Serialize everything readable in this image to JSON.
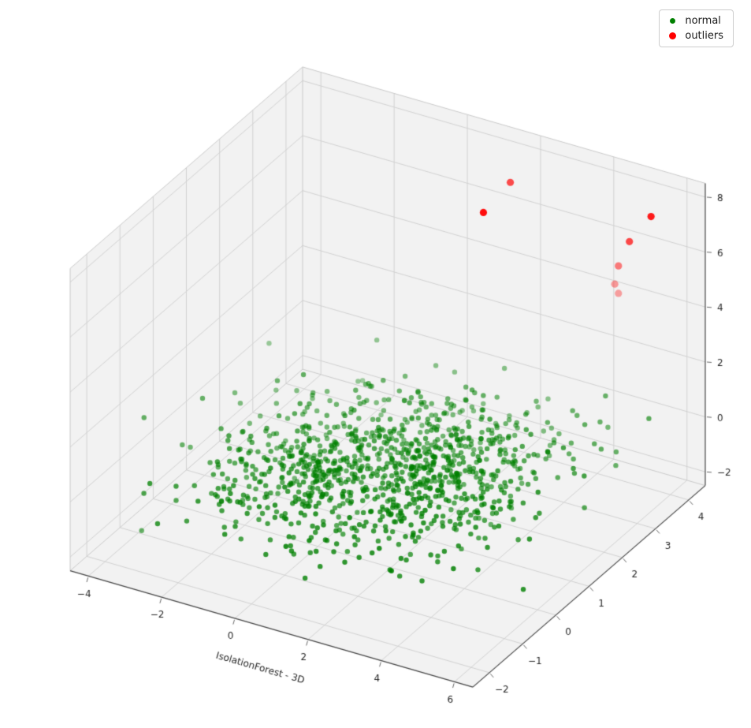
{
  "chart_data": {
    "type": "scatter",
    "projection": "3d",
    "title": "",
    "xlabel": "IsolationForest - 3D",
    "ylabel": "",
    "zlabel": "",
    "xlim": [
      -4.5,
      6.5
    ],
    "ylim": [
      -2.5,
      4.5
    ],
    "zlim": [
      -2.5,
      8.5
    ],
    "x_ticks": [
      -4,
      -2,
      0,
      2,
      4,
      6
    ],
    "y_ticks": [
      -2,
      -1,
      0,
      1,
      2,
      3,
      4
    ],
    "z_ticks": [
      -2,
      0,
      2,
      4,
      6,
      8
    ],
    "grid": true,
    "legend_position": "upper right",
    "view": {
      "elev": 30,
      "azim": -60
    },
    "style": {
      "pane_color": "#f2f2f2",
      "grid_color": "#d2d2d2",
      "edge_color": "#c9c9c9",
      "spine_color": "#444444",
      "text_color": "#262626",
      "tick_color": "#555555"
    },
    "series": [
      {
        "name": "normal",
        "color": "#008000",
        "marker_radius": 3.2,
        "seed": 42,
        "clusters": [
          {
            "center": [
              0.0,
              0.3,
              0.0
            ],
            "std": [
              1.4,
              1.1,
              0.75
            ],
            "n": 550
          },
          {
            "center": [
              2.4,
              1.2,
              0.0
            ],
            "std": [
              1.4,
              1.1,
              0.75
            ],
            "n": 550
          }
        ]
      },
      {
        "name": "outliers",
        "color": "#ff0000",
        "marker_radius": 4.6,
        "points": [
          [
            1.9,
            3.7,
            7.6
          ],
          [
            1.8,
            3.0,
            7.2
          ],
          [
            5.2,
            4.3,
            7.0
          ],
          [
            4.7,
            4.2,
            6.0
          ],
          [
            4.4,
            4.2,
            5.0
          ],
          [
            4.3,
            4.2,
            4.3
          ],
          [
            4.4,
            4.2,
            4.0
          ]
        ]
      }
    ]
  },
  "legend": {
    "items": [
      {
        "label": "normal",
        "color": "#008000",
        "marker_radius": 3.5
      },
      {
        "label": "outliers",
        "color": "#ff0000",
        "marker_radius": 4.5
      }
    ]
  }
}
